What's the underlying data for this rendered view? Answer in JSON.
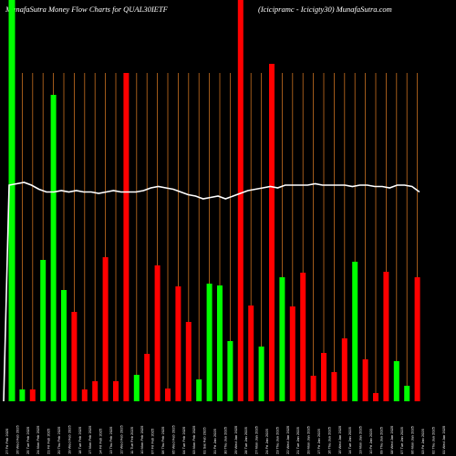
{
  "chart_data": {
    "type": "bar",
    "title_left": "MunafaSutra  Money Flow  Charts for QUAL30IETF",
    "title_right": "(Icicipramc  -  Icicigty30) MunafaSutra.com",
    "x_tick_labels": [
      "27 Fri Feb 2025",
      "26 Wed Feb 2025",
      "25 Tue Feb 2025",
      "24 Mon Feb 2025",
      "21 Fri Feb 2025",
      "20 Thu Feb 2025",
      "19 Wed Feb 2025",
      "18 Tue Feb 2025",
      "17 Mon Feb 2025",
      "14 Fri Feb 2025",
      "13 Thu Feb 2025",
      "12 Wed Feb 2025",
      "11 Tue Feb 2025",
      "10 Mon Feb 2025",
      "07 Fri Feb 2025",
      "06 Thu Feb 2025",
      "05 Wed Feb 2025",
      "04 Tue Feb 2025",
      "03 Mon Feb 2025",
      "01 Sat Feb 2025",
      "31 Fri Jan 2025",
      "30 Thu Jan 2025",
      "29 Wed Jan 2025",
      "28 Tue Jan 2025",
      "27 Mon Jan 2025",
      "24 Fri Jan 2025",
      "23 Thu Jan 2025",
      "22 Wed Jan 2025",
      "21 Tue Jan 2025",
      "20 Mon Jan 2025",
      "17 Fri Jan 2025",
      "16 Thu Jan 2025",
      "15 Wed Jan 2025",
      "14 Tue Jan 2025",
      "13 Mon Jan 2025",
      "10 Fri Jan 2025",
      "09 Thu Jan 2025",
      "08 Wed Jan 2025",
      "07 Tue Jan 2025",
      "06 Mon Jan 2025",
      "03 Fri Jan 2025",
      "02 Thu Jan 2025",
      "01 Wed Jan 2025"
    ],
    "bars": [
      {
        "value": 440,
        "color": "green"
      },
      {
        "value": 13,
        "color": "green"
      },
      {
        "value": 13,
        "color": "red"
      },
      {
        "value": 155,
        "color": "green"
      },
      {
        "value": 336,
        "color": "green"
      },
      {
        "value": 122,
        "color": "green"
      },
      {
        "value": 98,
        "color": "red"
      },
      {
        "value": 13,
        "color": "red"
      },
      {
        "value": 22,
        "color": "red"
      },
      {
        "value": 158,
        "color": "red"
      },
      {
        "value": 22,
        "color": "red"
      },
      {
        "value": 360,
        "color": "red"
      },
      {
        "value": 29,
        "color": "green"
      },
      {
        "value": 52,
        "color": "red"
      },
      {
        "value": 149,
        "color": "red"
      },
      {
        "value": 14,
        "color": "red"
      },
      {
        "value": 126,
        "color": "red"
      },
      {
        "value": 87,
        "color": "red"
      },
      {
        "value": 24,
        "color": "green"
      },
      {
        "value": 129,
        "color": "green"
      },
      {
        "value": 127,
        "color": "green"
      },
      {
        "value": 66,
        "color": "green"
      },
      {
        "value": 440,
        "color": "red"
      },
      {
        "value": 105,
        "color": "red"
      },
      {
        "value": 60,
        "color": "green"
      },
      {
        "value": 370,
        "color": "red"
      },
      {
        "value": 136,
        "color": "green"
      },
      {
        "value": 104,
        "color": "red"
      },
      {
        "value": 141,
        "color": "red"
      },
      {
        "value": 28,
        "color": "red"
      },
      {
        "value": 53,
        "color": "red"
      },
      {
        "value": 32,
        "color": "red"
      },
      {
        "value": 69,
        "color": "red"
      },
      {
        "value": 153,
        "color": "green"
      },
      {
        "value": 46,
        "color": "red"
      },
      {
        "value": 9,
        "color": "red"
      },
      {
        "value": 142,
        "color": "red"
      },
      {
        "value": 44,
        "color": "green"
      },
      {
        "value": 17,
        "color": "green"
      },
      {
        "value": 136,
        "color": "red"
      }
    ],
    "line_values": [
      0,
      238,
      239,
      240,
      238,
      235,
      233,
      233,
      234,
      233,
      234,
      233,
      233,
      232,
      233,
      234,
      233,
      233,
      233,
      234,
      236,
      237,
      236,
      235,
      233,
      231,
      230,
      228,
      229,
      230,
      228,
      230,
      232,
      234,
      235,
      236,
      237,
      236,
      238,
      238,
      238,
      238,
      239,
      238,
      238,
      238,
      238,
      237,
      238,
      238,
      237,
      237,
      236,
      238,
      238,
      237,
      233
    ],
    "colors": {
      "background": "#000000",
      "green": "#00ff00",
      "red": "#ff0000",
      "grid": "#c87020",
      "line": "#ffffff",
      "text": "#ffffff"
    }
  }
}
